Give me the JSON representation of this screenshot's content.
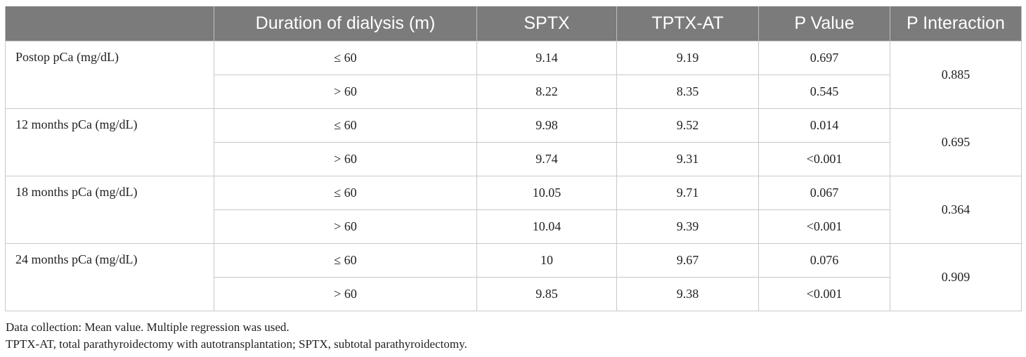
{
  "table": {
    "headers": [
      "",
      "Duration of dialysis (m)",
      "SPTX",
      "TPTX-AT",
      "P Value",
      "P Interaction"
    ],
    "groups": [
      {
        "label": "Postop pCa (mg/dL)",
        "p_interaction": "0.885",
        "rows": [
          {
            "duration": "≤ 60",
            "sptx": "9.14",
            "tptx_at": "9.19",
            "p_value": "0.697"
          },
          {
            "duration": "> 60",
            "sptx": "8.22",
            "tptx_at": "8.35",
            "p_value": "0.545"
          }
        ]
      },
      {
        "label": "12 months pCa (mg/dL)",
        "p_interaction": "0.695",
        "rows": [
          {
            "duration": "≤ 60",
            "sptx": "9.98",
            "tptx_at": "9.52",
            "p_value": "0.014"
          },
          {
            "duration": "> 60",
            "sptx": "9.74",
            "tptx_at": "9.31",
            "p_value": "<0.001"
          }
        ]
      },
      {
        "label": "18 months pCa (mg/dL)",
        "p_interaction": "0.364",
        "rows": [
          {
            "duration": "≤ 60",
            "sptx": "10.05",
            "tptx_at": "9.71",
            "p_value": "0.067"
          },
          {
            "duration": "> 60",
            "sptx": "10.04",
            "tptx_at": "9.39",
            "p_value": "<0.001"
          }
        ]
      },
      {
        "label": "24 months pCa (mg/dL)",
        "p_interaction": "0.909",
        "rows": [
          {
            "duration": "≤ 60",
            "sptx": "10",
            "tptx_at": "9.67",
            "p_value": "0.076"
          },
          {
            "duration": "> 60",
            "sptx": "9.85",
            "tptx_at": "9.38",
            "p_value": "<0.001"
          }
        ]
      }
    ]
  },
  "notes": [
    "Data collection: Mean value. Multiple regression was used.",
    "TPTX-AT, total parathyroidectomy with autotransplantation; SPTX, subtotal parathyroidectomy."
  ]
}
